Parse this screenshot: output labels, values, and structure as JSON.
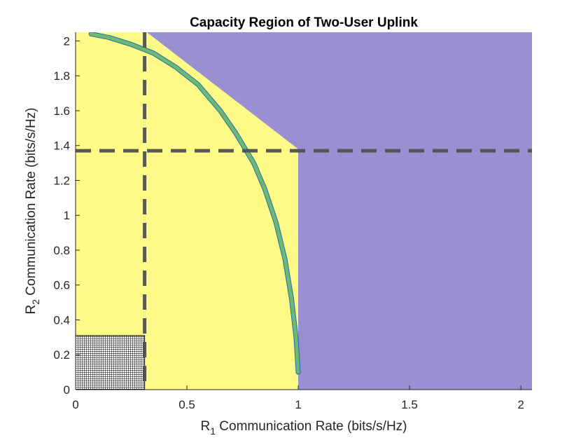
{
  "chart_data": {
    "type": "area",
    "title": "Capacity Region of Two-User Uplink",
    "xlabel": {
      "base": "R",
      "sub": "1",
      "rest": " Communication Rate (bits/s/Hz)"
    },
    "ylabel": {
      "base": "R",
      "sub": "2",
      "rest": " Communication Rate (bits/s/Hz)"
    },
    "xlim": [
      0,
      2.05
    ],
    "ylim": [
      0,
      2.05
    ],
    "xticks": [
      0,
      0.5,
      1,
      1.5,
      2
    ],
    "xtick_labels": [
      "0",
      "0.5",
      "1",
      "1.5",
      "2"
    ],
    "yticks": [
      0,
      0.2,
      0.4,
      0.6,
      0.8,
      1,
      1.2,
      1.4,
      1.6,
      1.8,
      2
    ],
    "ytick_labels": [
      "0",
      "0.2",
      "0.4",
      "0.6",
      "0.8",
      "1",
      "1.2",
      "1.4",
      "1.6",
      "1.8",
      "2"
    ],
    "grid": false,
    "regions": [
      {
        "id": "outside",
        "color": "#9A8FD1"
      },
      {
        "id": "inside",
        "color": "#FEFA87",
        "polygon": [
          [
            0,
            0
          ],
          [
            0,
            2.05
          ],
          [
            0.32,
            2.05
          ],
          [
            1.0,
            1.38
          ],
          [
            1.0,
            0
          ]
        ]
      },
      {
        "id": "hatched-box",
        "color": "#000000",
        "x": [
          0,
          0.31
        ],
        "y": [
          0,
          0.31
        ]
      }
    ],
    "series": [
      {
        "color": "#6FB872",
        "x": [
          0.07,
          0.15,
          0.25,
          0.35,
          0.45,
          0.55,
          0.65,
          0.72,
          0.8,
          0.85,
          0.9,
          0.94,
          0.97,
          0.99,
          1.0
        ],
        "y": [
          2.04,
          2.02,
          1.98,
          1.93,
          1.85,
          1.75,
          1.6,
          1.47,
          1.3,
          1.15,
          0.96,
          0.75,
          0.52,
          0.3,
          0.1
        ]
      }
    ],
    "reference_lines": [
      {
        "orientation": "vertical",
        "value": 0.31,
        "style": "dashed",
        "color": "#505050"
      },
      {
        "orientation": "horizontal",
        "value": 1.37,
        "style": "dashed",
        "color": "#505050"
      }
    ]
  }
}
